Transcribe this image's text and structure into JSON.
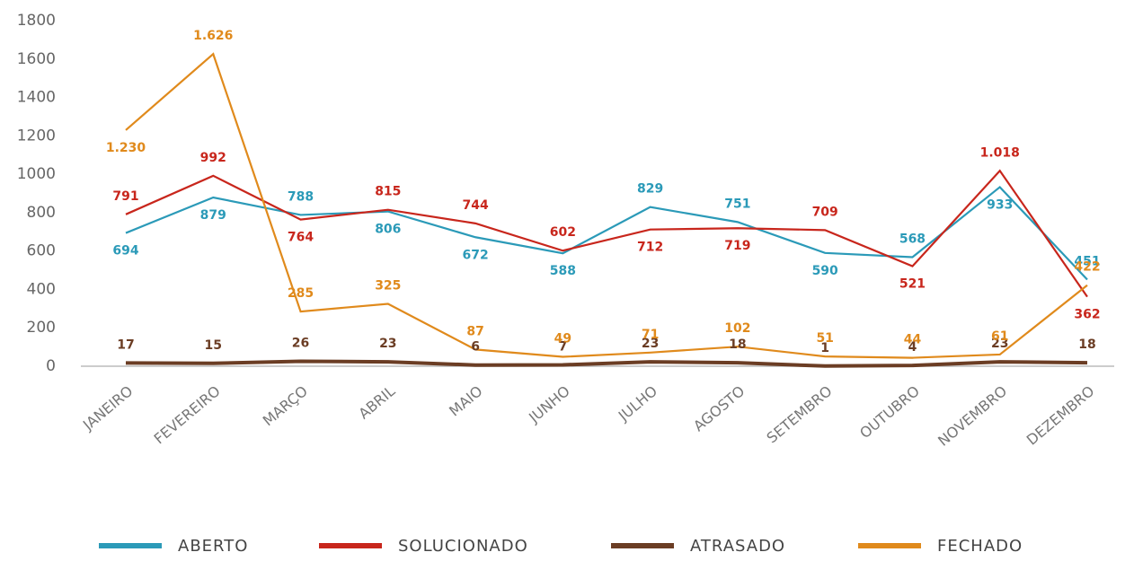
{
  "chart_data": {
    "type": "line",
    "categories": [
      "JANEIRO",
      "FEVEREIRO",
      "MARÇO",
      "ABRIL",
      "MAIO",
      "JUNHO",
      "JULHO",
      "AGOSTO",
      "SETEMBRO",
      "OUTUBRO",
      "NOVEMBRO",
      "DEZEMBRO"
    ],
    "series": [
      {
        "name": "ABERTO",
        "color": "#2b9ab8",
        "values": [
          694,
          879,
          788,
          806,
          672,
          588,
          829,
          751,
          590,
          568,
          933,
          451
        ]
      },
      {
        "name": "SOLUCIONADO",
        "color": "#c8261c",
        "values": [
          791,
          992,
          764,
          815,
          744,
          602,
          712,
          719,
          709,
          521,
          1018,
          362
        ],
        "value_labels": [
          "791",
          "992",
          "764",
          "815",
          "744",
          "602",
          "712",
          "719",
          "709",
          "521",
          "1.018",
          "362"
        ]
      },
      {
        "name": "ATRASADO",
        "color": "#6b3d24",
        "values": [
          17,
          15,
          26,
          23,
          6,
          7,
          23,
          18,
          1,
          4,
          23,
          18
        ]
      },
      {
        "name": "FECHADO",
        "color": "#e08a1c",
        "values": [
          1230,
          1626,
          285,
          325,
          87,
          49,
          71,
          102,
          51,
          44,
          61,
          422
        ],
        "value_labels": [
          "1.230",
          "1.626",
          "285",
          "325",
          "87",
          "49",
          "71",
          "102",
          "51",
          "44",
          "61",
          "422"
        ]
      }
    ],
    "ylim": [
      0,
      1800
    ],
    "yticks": [
      0,
      200,
      400,
      600,
      800,
      1000,
      1200,
      1400,
      1600,
      1800
    ]
  }
}
